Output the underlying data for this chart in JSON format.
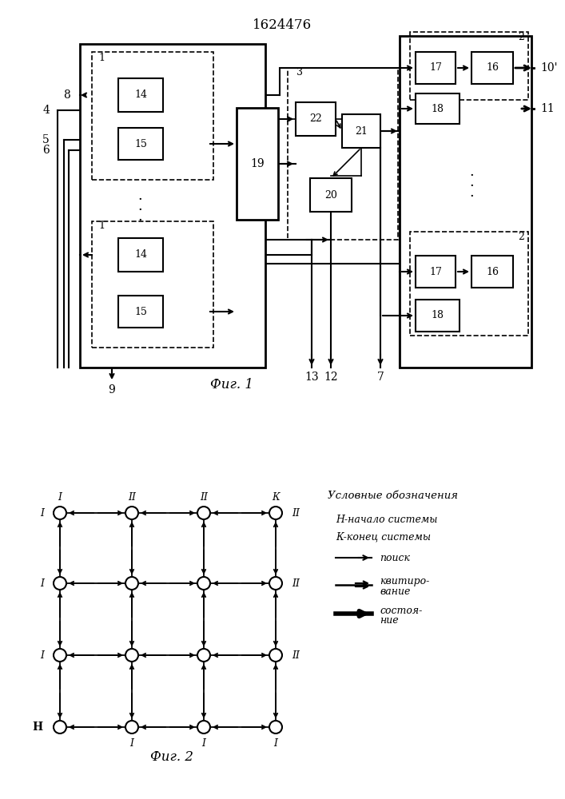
{
  "title": "1624476",
  "fig1_label": "Фиг. 1",
  "fig2_label": "Фиг. 2",
  "bg_color": "#ffffff"
}
